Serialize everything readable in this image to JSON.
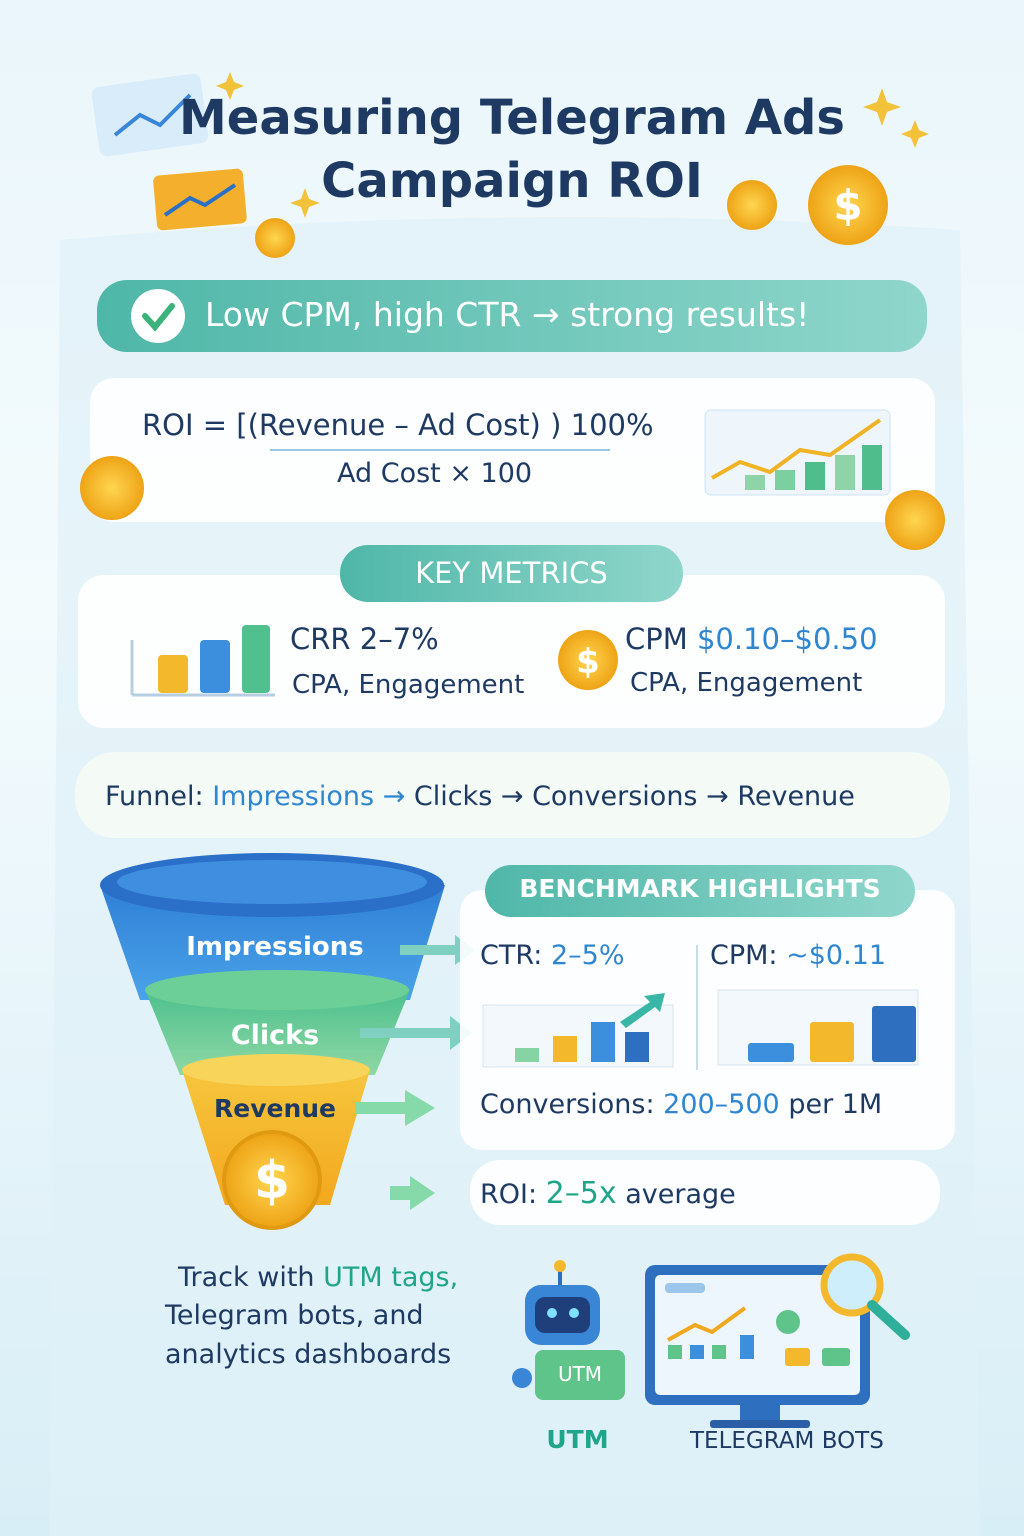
{
  "header": {
    "title_lines": [
      "Measuring Telegram Ads",
      "Campaign ROI"
    ]
  },
  "banner": "Low CPM, high CTR → strong results!",
  "formula": {
    "numerator": "ROI = [(Revenue – Ad Cost) ) 100%",
    "denominator": "Ad Cost  × 100"
  },
  "key_metrics": {
    "title": "KEY METRICS",
    "left": {
      "label": "CRR",
      "value": "2–7%",
      "sub": "CPA, Engagement"
    },
    "right": {
      "label": "CPM",
      "value": "$0.10–$0.50",
      "sub": "CPA, Engagement"
    }
  },
  "funnel_line": {
    "label": "Funnel:",
    "steps": [
      "Impressions →",
      "Clicks →",
      "Conversions →",
      "Revenue"
    ]
  },
  "funnel": {
    "stages": [
      "Impressions",
      "Clicks",
      "Revenue"
    ]
  },
  "benchmarks": {
    "title": "BENCHMARK HIGHLIGHTS",
    "ctr": {
      "label": "CTR:",
      "value": "2–5%"
    },
    "cpm": {
      "label": "CPM:",
      "value": "~$0.11"
    },
    "conversions": {
      "label": "Conversions:",
      "value": "200–500",
      "unit": "per 1M"
    },
    "roi": {
      "label": "ROI:",
      "value": "2–5x",
      "unit": "average"
    }
  },
  "tracking": {
    "lines": [
      "Track with",
      "UTM tags,",
      "Telegram bots, and",
      "analytics dashboards"
    ],
    "robot_tag": "UTM",
    "labels": [
      "UTM",
      "TELEGRAM BOTS"
    ]
  }
}
